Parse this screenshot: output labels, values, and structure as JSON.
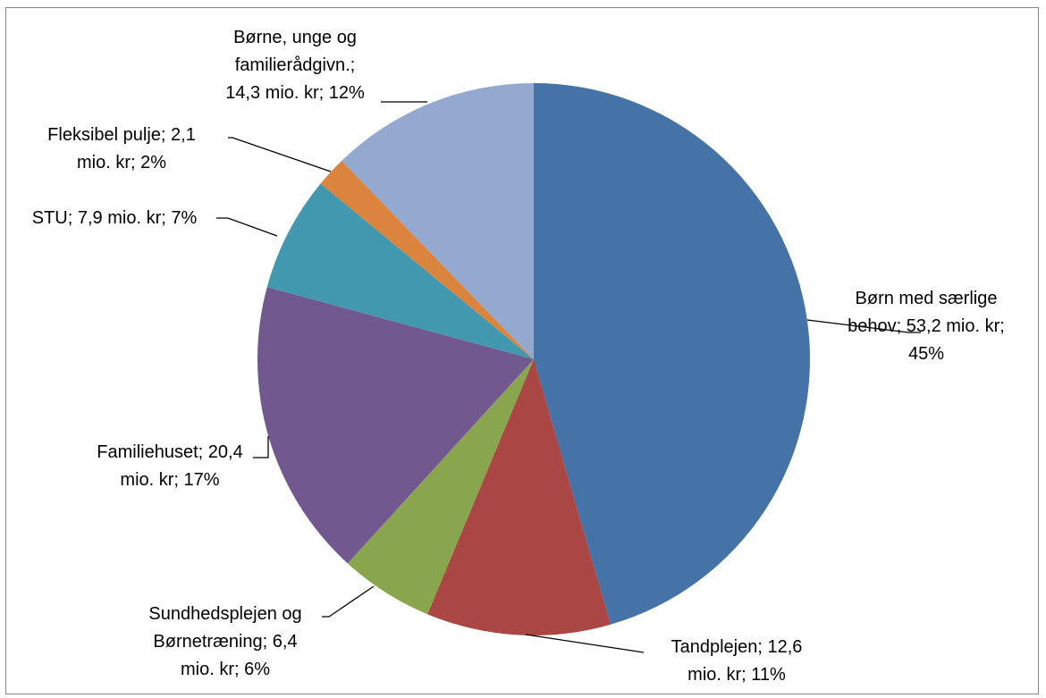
{
  "chart_data": {
    "type": "pie",
    "title": "",
    "start_angle_deg": 0,
    "direction": "clockwise",
    "slices": [
      {
        "name": "Børn med særlige behov",
        "value": 53.2,
        "percent": 45,
        "color": "#4572A7",
        "label_lines": [
          "Børn med særlige",
          "behov; 53,2 mio. kr;",
          "45%"
        ]
      },
      {
        "name": "Tandplejen",
        "value": 12.6,
        "percent": 11,
        "color": "#AA4643",
        "label_lines": [
          "Tandplejen; 12,6",
          "mio. kr; 11%"
        ]
      },
      {
        "name": "Sundhedsplejen og Børnetræning",
        "value": 6.4,
        "percent": 6,
        "color": "#89A54E",
        "label_lines": [
          "Sundhedsplejen og",
          "Børnetræning; 6,4",
          "mio. kr; 6%"
        ]
      },
      {
        "name": "Familiehuset",
        "value": 20.4,
        "percent": 17,
        "color": "#71588F",
        "label_lines": [
          "Familiehuset; 20,4",
          "mio. kr; 17%"
        ]
      },
      {
        "name": "STU",
        "value": 7.9,
        "percent": 7,
        "color": "#4198AF",
        "label_lines": [
          "STU; 7,9 mio. kr; 7%"
        ]
      },
      {
        "name": "Fleksibel pulje",
        "value": 2.1,
        "percent": 2,
        "color": "#DB843D",
        "label_lines": [
          "Fleksibel pulje;  2,1",
          "mio. kr; 2%"
        ]
      },
      {
        "name": "Børne, unge og familierådgivn.",
        "value": 14.3,
        "percent": 12,
        "color": "#93A9CF",
        "label_lines": [
          "Børne, unge og",
          "familierådgivn.;",
          "14,3 mio. kr; 12%"
        ]
      }
    ]
  }
}
